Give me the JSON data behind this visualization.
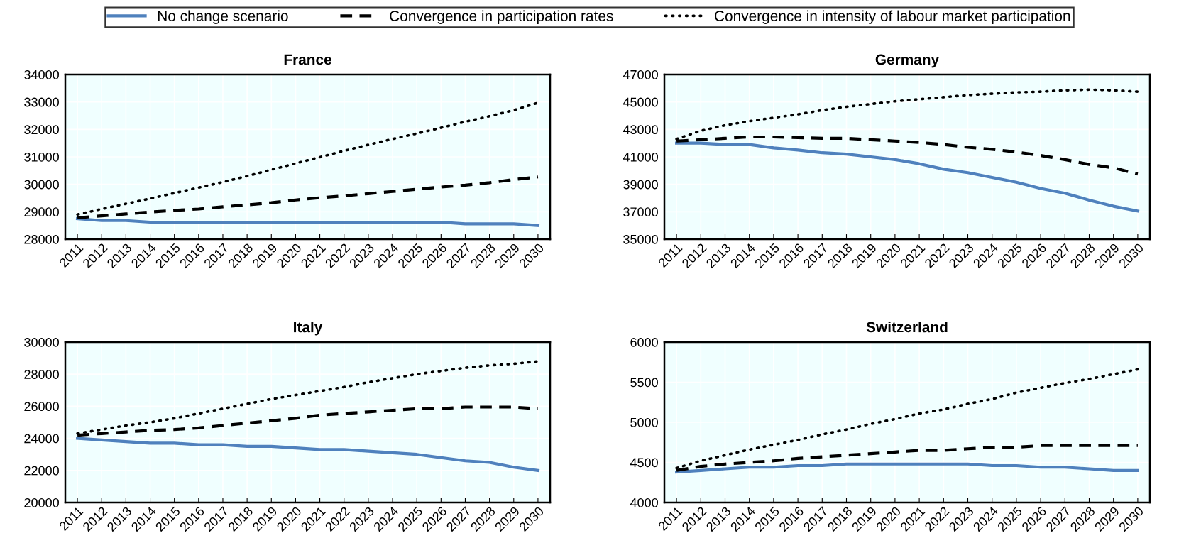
{
  "chart_data": [
    {
      "type": "line",
      "title": "France",
      "categories": [
        "2011",
        "2012",
        "2013",
        "2014",
        "2015",
        "2016",
        "2017",
        "2018",
        "2019",
        "2020",
        "2021",
        "2022",
        "2023",
        "2024",
        "2025",
        "2026",
        "2027",
        "2028",
        "2029",
        "2030"
      ],
      "ylim": [
        28000,
        34000
      ],
      "yticks": [
        28000,
        29000,
        30000,
        31000,
        32000,
        33000,
        34000
      ],
      "grid": true,
      "legend": "top",
      "series": [
        {
          "name": "No change scenario",
          "color": "#4f81bd",
          "line_style": "solid",
          "values": [
            28750,
            28680,
            28680,
            28620,
            28620,
            28620,
            28620,
            28620,
            28620,
            28620,
            28620,
            28620,
            28620,
            28620,
            28620,
            28620,
            28560,
            28560,
            28560,
            28500
          ]
        },
        {
          "name": "Convergence in participation rates",
          "color": "#000000",
          "line_style": "dashed",
          "values": [
            28780,
            28850,
            28920,
            28990,
            29050,
            29100,
            29180,
            29250,
            29330,
            29430,
            29510,
            29580,
            29660,
            29740,
            29820,
            29900,
            29970,
            30060,
            30170,
            30270
          ]
        },
        {
          "name": "Convergence in intensity of labour market participation",
          "color": "#000000",
          "line_style": "dotted",
          "values": [
            28900,
            29100,
            29290,
            29480,
            29680,
            29880,
            30080,
            30300,
            30530,
            30760,
            30990,
            31220,
            31440,
            31650,
            31850,
            32060,
            32280,
            32480,
            32700,
            32970
          ]
        }
      ]
    },
    {
      "type": "line",
      "title": "Germany",
      "categories": [
        "2011",
        "2012",
        "2013",
        "2014",
        "2015",
        "2016",
        "2017",
        "2018",
        "2019",
        "2020",
        "2021",
        "2022",
        "2023",
        "2024",
        "2025",
        "2026",
        "2027",
        "2028",
        "2029",
        "2030"
      ],
      "ylim": [
        35000,
        47000
      ],
      "yticks": [
        35000,
        37000,
        39000,
        41000,
        43000,
        45000,
        47000
      ],
      "grid": true,
      "series": [
        {
          "color": "#4f81bd",
          "line_style": "solid",
          "values": [
            42000,
            42000,
            41900,
            41900,
            41650,
            41500,
            41300,
            41200,
            41000,
            40800,
            40500,
            40100,
            39850,
            39500,
            39150,
            38700,
            38350,
            37850,
            37400,
            37050
          ]
        },
        {
          "color": "#000000",
          "line_style": "dashed",
          "values": [
            42150,
            42250,
            42350,
            42450,
            42450,
            42400,
            42350,
            42350,
            42250,
            42150,
            42050,
            41900,
            41700,
            41550,
            41350,
            41100,
            40800,
            40450,
            40200,
            39750
          ]
        },
        {
          "color": "#000000",
          "line_style": "dotted",
          "values": [
            42300,
            42900,
            43300,
            43600,
            43850,
            44100,
            44400,
            44650,
            44850,
            45050,
            45200,
            45350,
            45500,
            45600,
            45700,
            45750,
            45850,
            45900,
            45850,
            45750
          ]
        }
      ]
    },
    {
      "type": "line",
      "title": "Italy",
      "categories": [
        "2011",
        "2012",
        "2013",
        "2014",
        "2015",
        "2016",
        "2017",
        "2018",
        "2019",
        "2020",
        "2021",
        "2022",
        "2023",
        "2024",
        "2025",
        "2026",
        "2027",
        "2028",
        "2029",
        "2030"
      ],
      "ylim": [
        20000,
        30000
      ],
      "yticks": [
        20000,
        22000,
        24000,
        26000,
        28000,
        30000
      ],
      "grid": true,
      "series": [
        {
          "color": "#4f81bd",
          "line_style": "solid",
          "values": [
            24000,
            23900,
            23800,
            23700,
            23700,
            23600,
            23600,
            23500,
            23500,
            23400,
            23300,
            23300,
            23200,
            23100,
            23000,
            22800,
            22600,
            22500,
            22200,
            22000
          ]
        },
        {
          "color": "#000000",
          "line_style": "dashed",
          "values": [
            24200,
            24300,
            24400,
            24500,
            24550,
            24650,
            24800,
            24950,
            25100,
            25250,
            25450,
            25550,
            25650,
            25750,
            25850,
            25850,
            25950,
            25950,
            25950,
            25850
          ]
        },
        {
          "color": "#000000",
          "line_style": "dotted",
          "values": [
            24300,
            24550,
            24800,
            25000,
            25250,
            25550,
            25850,
            26150,
            26450,
            26700,
            26950,
            27200,
            27500,
            27750,
            28000,
            28200,
            28400,
            28550,
            28650,
            28800
          ]
        }
      ]
    },
    {
      "type": "line",
      "title": "Switzerland",
      "categories": [
        "2011",
        "2012",
        "2013",
        "2014",
        "2015",
        "2016",
        "2017",
        "2018",
        "2019",
        "2020",
        "2021",
        "2022",
        "2023",
        "2024",
        "2025",
        "2026",
        "2027",
        "2028",
        "2029",
        "2030"
      ],
      "ylim": [
        4000,
        6000
      ],
      "yticks": [
        4000,
        4500,
        5000,
        5500,
        6000
      ],
      "grid": true,
      "series": [
        {
          "color": "#4f81bd",
          "line_style": "solid",
          "values": [
            4380,
            4400,
            4420,
            4440,
            4440,
            4460,
            4460,
            4480,
            4480,
            4480,
            4480,
            4480,
            4480,
            4460,
            4460,
            4440,
            4440,
            4420,
            4400,
            4400
          ]
        },
        {
          "color": "#000000",
          "line_style": "dashed",
          "values": [
            4400,
            4450,
            4480,
            4500,
            4520,
            4550,
            4570,
            4590,
            4610,
            4630,
            4650,
            4650,
            4670,
            4690,
            4690,
            4710,
            4710,
            4710,
            4710,
            4710
          ]
        },
        {
          "color": "#000000",
          "line_style": "dotted",
          "values": [
            4430,
            4520,
            4590,
            4660,
            4720,
            4780,
            4850,
            4910,
            4980,
            5040,
            5110,
            5160,
            5230,
            5290,
            5370,
            5430,
            5490,
            5540,
            5600,
            5660
          ]
        }
      ]
    }
  ]
}
